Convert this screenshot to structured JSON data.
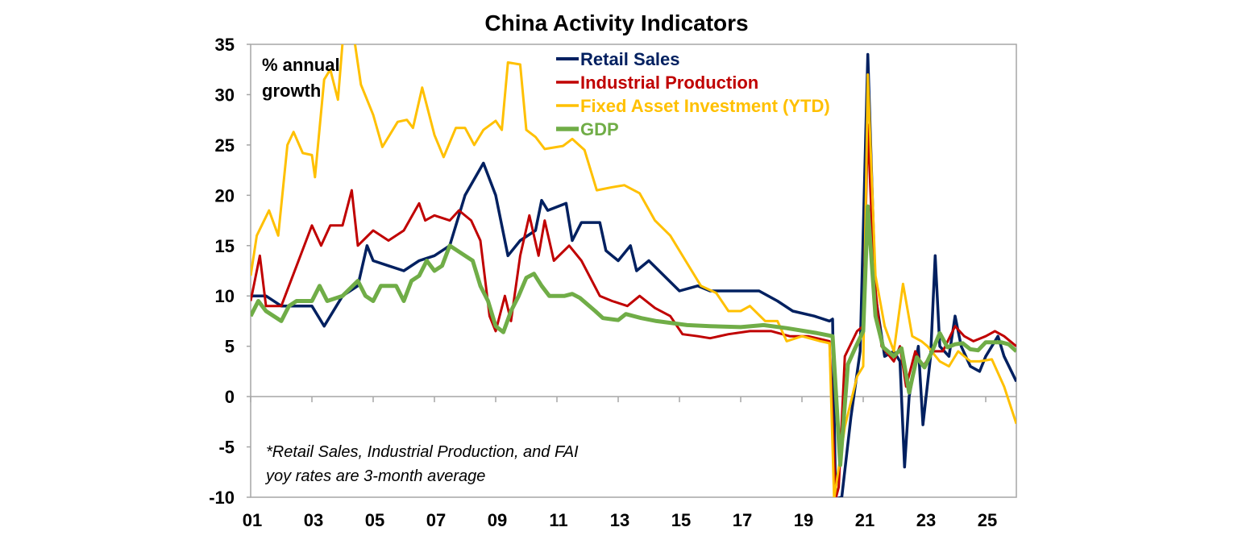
{
  "chart_data": {
    "type": "line",
    "title": "China Activity Indicators",
    "ylabel": "% annual growth",
    "xlabel": "",
    "ylim": [
      -10,
      35
    ],
    "xlim": [
      2001,
      2026
    ],
    "yticks": [
      -10,
      -5,
      0,
      5,
      10,
      15,
      20,
      25,
      30,
      35
    ],
    "ytick_labels": [
      "-10",
      "-5",
      "0",
      "5",
      "10",
      "15",
      "20",
      "25",
      "30",
      "35"
    ],
    "xticks": [
      2001,
      2003,
      2005,
      2007,
      2009,
      2011,
      2013,
      2015,
      2017,
      2019,
      2021,
      2023,
      2025
    ],
    "xtick_labels": [
      "01",
      "03",
      "05",
      "07",
      "09",
      "11",
      "13",
      "15",
      "17",
      "19",
      "21",
      "23",
      "25"
    ],
    "grid": false,
    "legend_position": "top-center",
    "annotation": [
      "*Retail Sales, Industrial Production, and FAI",
      "yoy rates are 3-month average"
    ],
    "series": [
      {
        "name": "Retail Sales",
        "color": "#002060",
        "width": 3.5,
        "x": [
          2001,
          2001.5,
          2002,
          2003,
          2003.4,
          2004,
          2004.5,
          2004.8,
          2005,
          2005.5,
          2006,
          2006.5,
          2007,
          2007.5,
          2008,
          2008.6,
          2009,
          2009.4,
          2009.8,
          2010.3,
          2010.5,
          2010.7,
          2011.3,
          2011.5,
          2011.8,
          2012.4,
          2012.6,
          2013,
          2013.4,
          2013.6,
          2014,
          2014.5,
          2015,
          2015.6,
          2016,
          2016.6,
          2017.6,
          2018.2,
          2018.7,
          2019.4,
          2019.9,
          2020.0,
          2020.1,
          2020.3,
          2020.6,
          2020.9,
          2021.15,
          2021.4,
          2021.7,
          2022,
          2022.2,
          2022.35,
          2022.5,
          2022.8,
          2022.95,
          2023.2,
          2023.35,
          2023.5,
          2023.8,
          2024,
          2024.2,
          2024.5,
          2024.8,
          2025,
          2025.4,
          2025.6,
          2026
        ],
        "values": [
          10,
          10,
          9,
          9,
          7,
          10,
          11,
          15,
          13.5,
          13,
          12.5,
          13.5,
          14,
          15,
          20,
          23.2,
          20,
          14,
          15.5,
          16.5,
          19.5,
          18.5,
          19.2,
          15.5,
          17.3,
          17.3,
          14.5,
          13.5,
          15,
          12.5,
          13.5,
          12,
          10.5,
          11,
          10.5,
          10.5,
          10.5,
          9.5,
          8.5,
          8,
          7.5,
          7.7,
          -20,
          -10,
          -2,
          4.5,
          34,
          10,
          4,
          4.5,
          3.5,
          -7,
          0,
          5,
          -2.8,
          4,
          14,
          5,
          4,
          8,
          5,
          3,
          2.5,
          4,
          6,
          4,
          1.5
        ]
      },
      {
        "name": "Industrial Production",
        "color": "#C00000",
        "width": 3,
        "x": [
          2001,
          2001.3,
          2001.5,
          2002,
          2002.5,
          2003,
          2003.3,
          2003.6,
          2004,
          2004.3,
          2004.5,
          2005,
          2005.5,
          2006,
          2006.5,
          2006.7,
          2007,
          2007.5,
          2007.8,
          2008.2,
          2008.5,
          2008.8,
          2009,
          2009.3,
          2009.5,
          2009.8,
          2010.1,
          2010.4,
          2010.6,
          2010.9,
          2011.4,
          2011.8,
          2012.4,
          2012.8,
          2013.3,
          2013.7,
          2014.2,
          2014.7,
          2015.1,
          2015.6,
          2016,
          2016.6,
          2017.3,
          2018,
          2018.6,
          2019.2,
          2019.9,
          2020.1,
          2020.2,
          2020.4,
          2020.8,
          2021,
          2021.15,
          2021.35,
          2021.6,
          2022,
          2022.2,
          2022.4,
          2022.7,
          2022.95,
          2023.3,
          2023.6,
          2024,
          2024.3,
          2024.6,
          2025,
          2025.3,
          2025.6,
          2026
        ],
        "values": [
          9.5,
          14,
          9,
          9,
          13,
          17,
          15,
          17,
          17,
          20.5,
          15,
          16.5,
          15.5,
          16.5,
          19.2,
          17.5,
          18,
          17.5,
          18.5,
          17.5,
          15.5,
          8,
          6.5,
          10,
          7.5,
          14,
          18,
          14,
          17.5,
          13.5,
          15,
          13.5,
          10,
          9.5,
          9,
          10,
          8.8,
          8,
          6.2,
          6,
          5.8,
          6.2,
          6.5,
          6.5,
          6,
          6,
          5.5,
          -25,
          -9,
          4,
          6.5,
          7,
          27,
          12,
          5,
          3.5,
          5,
          1,
          4.5,
          3,
          4.5,
          4.5,
          7,
          6,
          5.5,
          6,
          6.5,
          6,
          5
        ]
      },
      {
        "name": "Fixed Asset Investment (YTD)",
        "color": "#FFC000",
        "width": 3,
        "x": [
          2001,
          2001.2,
          2001.6,
          2001.9,
          2002.2,
          2002.4,
          2002.7,
          2003,
          2003.1,
          2003.4,
          2003.6,
          2003.85,
          2004,
          2004.2,
          2004.4,
          2004.6,
          2005,
          2005.3,
          2005.8,
          2006.1,
          2006.3,
          2006.6,
          2007,
          2007.3,
          2007.7,
          2008,
          2008.3,
          2008.6,
          2009,
          2009.2,
          2009.4,
          2009.8,
          2010,
          2010.3,
          2010.6,
          2011.2,
          2011.5,
          2011.9,
          2012.3,
          2012.8,
          2013.2,
          2013.7,
          2014.2,
          2014.7,
          2015.2,
          2015.7,
          2016.2,
          2016.6,
          2017,
          2017.3,
          2017.8,
          2018.2,
          2018.5,
          2019,
          2019.6,
          2019.9,
          2020.05,
          2020.4,
          2020.8,
          2021,
          2021.15,
          2021.4,
          2021.7,
          2022,
          2022.3,
          2022.6,
          2022.9,
          2023.1,
          2023.5,
          2023.8,
          2024.1,
          2024.5,
          2024.8,
          2025.2,
          2025.6,
          2026
        ],
        "values": [
          12,
          16,
          18.5,
          16,
          25,
          26.3,
          24.2,
          24,
          21.8,
          31.5,
          32.5,
          29.5,
          40,
          45,
          36,
          31,
          28,
          24.8,
          27.3,
          27.5,
          26.7,
          30.7,
          26,
          23.8,
          26.7,
          26.7,
          25,
          26.5,
          27.4,
          26.5,
          33.2,
          33,
          26.5,
          25.8,
          24.6,
          24.9,
          25.6,
          24.5,
          20.5,
          20.8,
          21,
          20.2,
          17.5,
          16,
          13.5,
          11,
          10.3,
          8.5,
          8.5,
          9,
          7.5,
          7.5,
          5.5,
          6,
          5.5,
          5.3,
          -24,
          -3,
          2,
          3,
          32,
          12,
          7,
          4.5,
          11.2,
          6,
          5.5,
          5,
          3.5,
          3,
          4.5,
          3.5,
          3.5,
          3.7,
          1,
          -2.7
        ]
      },
      {
        "name": "GDP",
        "color": "#70AD47",
        "width": 5,
        "x": [
          2001,
          2001.25,
          2001.5,
          2002,
          2002.25,
          2002.5,
          2003,
          2003.25,
          2003.5,
          2004,
          2004.5,
          2004.75,
          2005,
          2005.25,
          2005.75,
          2006,
          2006.25,
          2006.5,
          2006.75,
          2007,
          2007.25,
          2007.5,
          2008,
          2008.25,
          2008.5,
          2008.75,
          2009,
          2009.25,
          2009.5,
          2009.75,
          2010,
          2010.25,
          2010.5,
          2010.75,
          2011.25,
          2011.5,
          2011.75,
          2012.25,
          2012.5,
          2013,
          2013.25,
          2013.75,
          2014.25,
          2014.75,
          2015.25,
          2016,
          2017,
          2017.75,
          2018.5,
          2019.5,
          2020,
          2020.25,
          2020.5,
          2020.75,
          2021,
          2021.15,
          2021.4,
          2021.65,
          2022,
          2022.25,
          2022.5,
          2022.75,
          2023,
          2023.25,
          2023.5,
          2023.75,
          2024,
          2024.25,
          2024.5,
          2024.75,
          2025,
          2025.5,
          2025.75,
          2026
        ],
        "values": [
          8,
          9.5,
          8.5,
          7.5,
          9,
          9.5,
          9.5,
          11,
          9.5,
          10,
          11.5,
          10,
          9.5,
          11,
          11,
          9.5,
          11.5,
          12,
          13.5,
          12.5,
          13,
          15,
          14,
          13.5,
          11,
          9.5,
          7,
          6.4,
          8.5,
          10,
          11.8,
          12.2,
          11,
          10,
          10,
          10.2,
          9.8,
          8.5,
          7.8,
          7.6,
          8.2,
          7.8,
          7.5,
          7.3,
          7.1,
          7,
          6.9,
          7.1,
          6.8,
          6.3,
          6,
          -6.8,
          3.2,
          4.9,
          6.5,
          18.9,
          8,
          4.9,
          4,
          4.8,
          0.4,
          3.9,
          2.9,
          4.5,
          6.3,
          4.9,
          5.2,
          5.3,
          4.7,
          4.6,
          5.4,
          5.4,
          5.2,
          4.5
        ]
      }
    ]
  }
}
